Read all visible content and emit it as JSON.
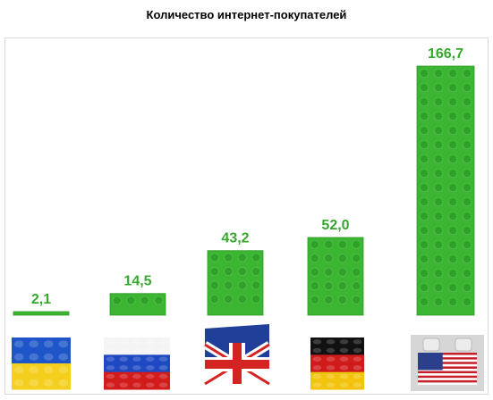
{
  "chart_data": {
    "type": "bar",
    "title": "Количество интернет-покупателей",
    "xlabel": "",
    "ylabel": "",
    "categories": [
      "Украина",
      "Россия",
      "Великобритания",
      "Германия",
      "США"
    ],
    "category_icons": [
      "ukraine-flag-lego-icon",
      "russia-flag-lego-icon",
      "uk-flag-lego-icon",
      "germany-flag-lego-icon",
      "usa-flag-lego-icon"
    ],
    "values": [
      2.1,
      14.5,
      43.2,
      52.0,
      166.7
    ],
    "value_labels": [
      "2,1",
      "14,5",
      "43,2",
      "52,0",
      "166,7"
    ],
    "ylim": [
      0,
      166.7
    ],
    "grid": false,
    "legend": "none",
    "colors": {
      "bar": "#3cb533",
      "bar_stud": "#2fa128",
      "label": "#36a82c"
    }
  }
}
